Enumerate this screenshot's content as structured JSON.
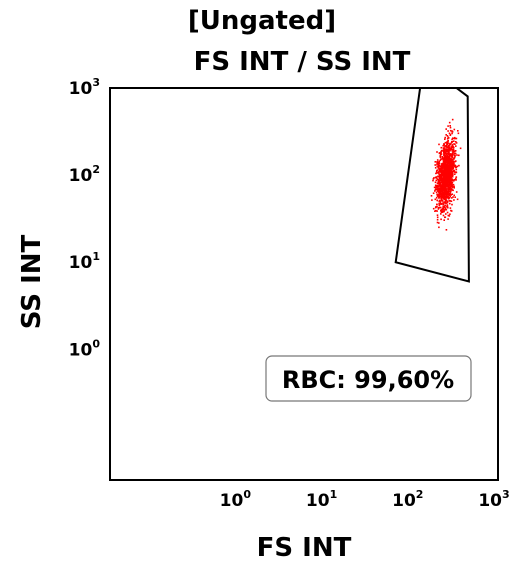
{
  "chart_data": {
    "type": "scatter",
    "title": [
      "[Ungated]",
      "FS INT / SS INT"
    ],
    "xlabel": "FS INT",
    "ylabel": "SS INT",
    "xscale": "log",
    "yscale": "log",
    "xlim": [
      0.0316,
      1000
    ],
    "ylim": [
      0.0316,
      1000
    ],
    "x_ticks": [
      {
        "base": "10",
        "exp": "0",
        "value": 1
      },
      {
        "base": "10",
        "exp": "1",
        "value": 10
      },
      {
        "base": "10",
        "exp": "2",
        "value": 100
      },
      {
        "base": "10",
        "exp": "3",
        "value": 1000
      }
    ],
    "y_ticks": [
      {
        "base": "10",
        "exp": "0",
        "value": 1
      },
      {
        "base": "10",
        "exp": "1",
        "value": 10
      },
      {
        "base": "10",
        "exp": "2",
        "value": 100
      },
      {
        "base": "10",
        "exp": "3",
        "value": 1000
      }
    ],
    "grid": false,
    "population": {
      "color": "#ff0000",
      "center": [
        250,
        100
      ],
      "x_range": [
        150,
        430
      ],
      "y_range": [
        10,
        1000
      ]
    },
    "gate": {
      "label": "RBC: 99,60%",
      "polygon": [
        [
          65,
          10
        ],
        [
          125,
          1000
        ],
        [
          330,
          1000
        ],
        [
          445,
          800
        ],
        [
          460,
          6
        ]
      ]
    }
  }
}
